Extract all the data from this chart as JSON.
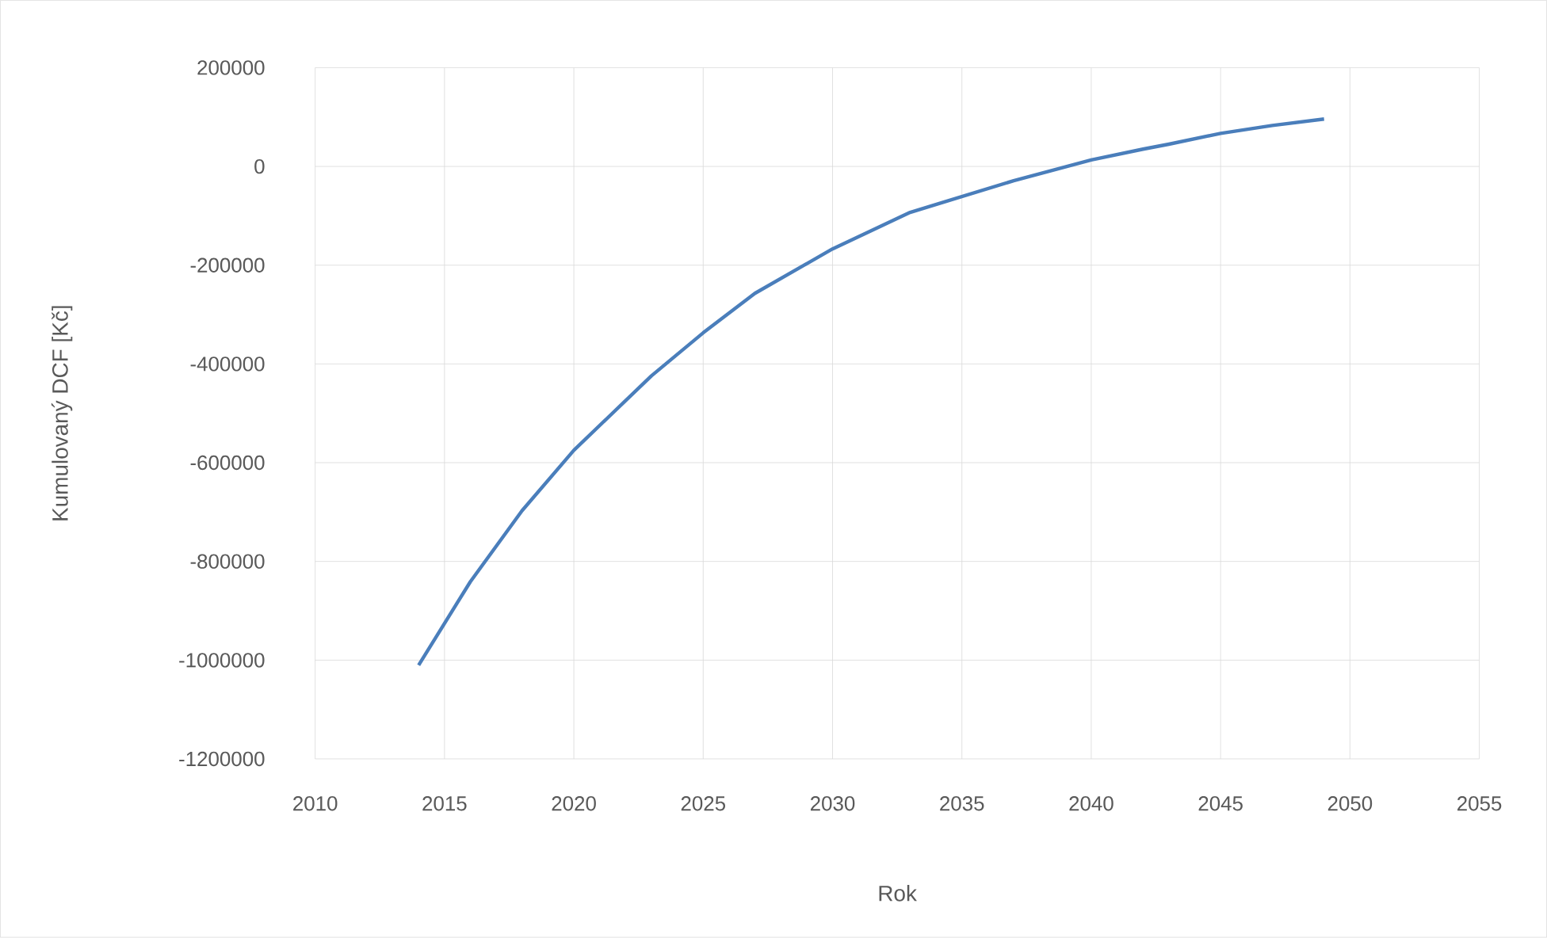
{
  "chart_data": {
    "type": "line",
    "xlabel": "Rok",
    "ylabel": "Kumulovaný DCF [Kč]",
    "x": [
      2014,
      2016,
      2018,
      2020,
      2023,
      2025,
      2027,
      2030,
      2033,
      2035,
      2037,
      2040,
      2042,
      2043,
      2045,
      2047,
      2049
    ],
    "series": [
      {
        "color": "#4a7ebb",
        "values": [
          -1010000,
          -841000,
          -697000,
          -575000,
          -424000,
          -337000,
          -257000,
          -167000,
          -93000,
          -61000,
          -29000,
          13000,
          35000,
          45000,
          67000,
          83000,
          96000
        ]
      }
    ],
    "xlim": [
      2010,
      2055
    ],
    "xticks": [
      2010,
      2015,
      2020,
      2025,
      2030,
      2035,
      2040,
      2045,
      2050,
      2055
    ],
    "ylim": [
      -1200000,
      200000
    ],
    "yticks": [
      -1200000,
      -1000000,
      -800000,
      -600000,
      -400000,
      -200000,
      0,
      200000
    ],
    "grid": true,
    "marker": "none",
    "line_style": "solid"
  }
}
